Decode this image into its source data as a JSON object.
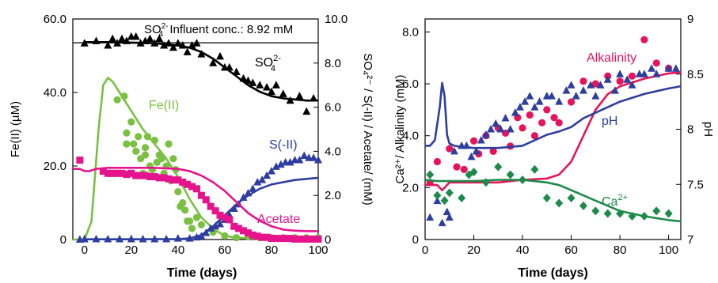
{
  "chart_data": [
    {
      "type": "scatter",
      "panel": "left",
      "xlabel": "Time (days)",
      "ylabel_left": "Fe(II) (µM)",
      "ylabel_right": "SO₄²⁻ / S(-II) / Acetate/ (mM)",
      "xlim": [
        -5,
        100
      ],
      "ylim_left": [
        0,
        60
      ],
      "ylim_right": [
        0,
        10
      ],
      "xticks": [
        "0",
        "20",
        "40",
        "60",
        "80",
        "100"
      ],
      "yticks_left": [
        "0",
        "20.0",
        "40.0",
        "60.0"
      ],
      "yticks_right": [
        "0",
        "2.0",
        "4.0",
        "6.0",
        "8.0",
        "10.0"
      ],
      "influent": {
        "value": 8.92,
        "label_prefix": "SO",
        "label_sub": "4",
        "label_sup": "2-",
        "label_text": " Influent conc.: 8.92 mM",
        "color": "#000000"
      },
      "series": [
        {
          "name": "SO₄²⁻",
          "label_main": "SO",
          "label_sub": "4",
          "label_sup": "2-",
          "axis": "right",
          "color": "#000000",
          "marker": "triangle",
          "x": [
            0,
            5,
            10,
            12,
            14,
            16,
            18,
            20,
            22,
            24,
            26,
            28,
            30,
            32,
            34,
            36,
            38,
            40,
            42,
            44,
            46,
            48,
            50,
            55,
            58,
            60,
            62,
            65,
            68,
            70,
            72,
            75,
            78,
            80,
            82,
            85,
            88,
            92,
            95,
            98
          ],
          "y": [
            8.9,
            9.0,
            8.8,
            9.1,
            8.9,
            9.1,
            9.0,
            9.2,
            9.2,
            8.9,
            9.0,
            9.1,
            8.9,
            9.1,
            8.8,
            8.9,
            8.7,
            8.9,
            8.8,
            8.5,
            8.8,
            8.9,
            8.4,
            8.0,
            8.3,
            7.8,
            7.8,
            7.6,
            7.3,
            7.2,
            7.1,
            7.0,
            6.9,
            6.7,
            7.0,
            6.6,
            6.3,
            6.5,
            5.8,
            6.4
          ],
          "fit_x": [
            0,
            10,
            20,
            30,
            40,
            45,
            50,
            55,
            60,
            65,
            70,
            75,
            80,
            85,
            90,
            95,
            100
          ],
          "fit_y": [
            8.95,
            8.95,
            8.93,
            8.9,
            8.8,
            8.7,
            8.5,
            8.2,
            7.8,
            7.4,
            7.0,
            6.7,
            6.5,
            6.4,
            6.35,
            6.3,
            6.3
          ]
        },
        {
          "name": "Fe(II)",
          "axis": "left",
          "color": "#7ac043",
          "marker": "circle",
          "x": [
            14,
            17,
            18,
            18,
            20,
            21,
            22,
            23,
            24,
            25,
            26,
            26,
            27,
            28,
            29,
            30,
            31,
            32,
            33,
            34,
            35,
            36,
            37,
            38,
            39,
            40,
            41,
            42,
            43,
            44,
            45,
            46,
            48,
            50,
            55,
            60,
            65,
            70,
            75,
            80,
            85,
            90,
            95,
            100
          ],
          "y": [
            38,
            39,
            26,
            29,
            32,
            26,
            24,
            28,
            22,
            18,
            25,
            23,
            28,
            20,
            19,
            27,
            21,
            23,
            22,
            18,
            20,
            26,
            16,
            22,
            19,
            13,
            9,
            10,
            8,
            5,
            5,
            3,
            6,
            4,
            2,
            1,
            0.5,
            0.8,
            0.5,
            0.5,
            0.5,
            0.5,
            0.5,
            0.5
          ],
          "fit_x": [
            -5,
            0,
            3,
            6,
            8,
            10,
            12,
            15,
            20,
            25,
            30,
            35,
            40,
            45,
            50,
            55,
            60,
            65,
            70,
            80,
            90,
            100
          ],
          "fit_y": [
            0,
            0,
            5,
            30,
            42,
            44,
            43,
            40,
            35,
            30,
            26,
            22,
            17,
            11,
            6,
            3,
            1,
            0.5,
            0.3,
            0.2,
            0.2,
            0.2
          ]
        },
        {
          "name": "S(-II)",
          "axis": "right",
          "color": "#2e3e9e",
          "marker": "triangle",
          "x": [
            -2,
            0,
            5,
            10,
            15,
            20,
            25,
            30,
            35,
            40,
            45,
            48,
            50,
            52,
            54,
            56,
            58,
            60,
            62,
            64,
            66,
            68,
            70,
            72,
            74,
            76,
            78,
            80,
            82,
            84,
            86,
            88,
            90,
            92,
            94,
            96,
            98,
            100
          ],
          "y": [
            0,
            0.02,
            0.02,
            0.02,
            0.02,
            0.02,
            0.02,
            0.02,
            0.02,
            0.05,
            0.05,
            0.1,
            0.15,
            0.3,
            0.5,
            0.6,
            0.7,
            0.9,
            1.1,
            1.4,
            1.6,
            1.9,
            2.1,
            2.3,
            2.6,
            2.7,
            2.9,
            3.1,
            3.3,
            3.4,
            3.5,
            3.5,
            3.6,
            3.6,
            3.8,
            3.7,
            3.7,
            3.6
          ],
          "fit_x": [
            0,
            20,
            40,
            45,
            50,
            55,
            60,
            65,
            70,
            75,
            80,
            85,
            90,
            95,
            100
          ],
          "fit_y": [
            0.01,
            0.01,
            0.02,
            0.05,
            0.2,
            0.6,
            1.1,
            1.6,
            2.0,
            2.3,
            2.5,
            2.6,
            2.7,
            2.75,
            2.8
          ]
        },
        {
          "name": "Acetate",
          "axis": "right",
          "color": "#e6148c",
          "marker": "square",
          "x": [
            -2,
            8,
            10,
            12,
            14,
            16,
            18,
            20,
            22,
            24,
            26,
            28,
            30,
            32,
            34,
            36,
            38,
            40,
            42,
            44,
            46,
            48,
            50,
            52,
            54,
            56,
            58,
            60,
            62,
            64,
            66,
            68,
            70,
            72,
            74,
            76,
            78,
            80,
            82,
            84,
            86,
            88,
            90,
            92,
            94,
            96,
            98,
            100
          ],
          "y": [
            3.6,
            3.1,
            3.0,
            3.0,
            3.0,
            3.0,
            2.95,
            3.0,
            2.9,
            2.9,
            2.9,
            2.85,
            2.85,
            2.8,
            2.8,
            2.75,
            2.7,
            2.7,
            2.6,
            2.5,
            2.4,
            2.3,
            2.0,
            1.8,
            1.5,
            1.3,
            1.1,
            1.0,
            0.9,
            0.6,
            0.5,
            0.4,
            0.3,
            0.2,
            0.15,
            0.1,
            0.1,
            0.05,
            0.05,
            0.05,
            0.05,
            0.05,
            0.02,
            0.02,
            0.02,
            0.02,
            0.02,
            0.02
          ],
          "fit_x": [
            -5,
            -2,
            0,
            2,
            5,
            10,
            20,
            30,
            40,
            45,
            50,
            55,
            60,
            65,
            70,
            75,
            80,
            85,
            90,
            95,
            100
          ],
          "fit_y": [
            3.2,
            3.2,
            3.1,
            3.1,
            3.2,
            3.25,
            3.25,
            3.25,
            3.2,
            3.1,
            2.9,
            2.6,
            2.2,
            1.7,
            1.2,
            0.85,
            0.6,
            0.45,
            0.4,
            0.38,
            0.38
          ]
        }
      ]
    },
    {
      "type": "scatter",
      "panel": "right",
      "xlabel": "Time (days)",
      "ylabel_left": "Ca²⁺/ Alkalinity (mM)",
      "ylabel_right": "pH",
      "xlim": [
        0,
        105
      ],
      "ylim_left": [
        0,
        8.5
      ],
      "ylim_right": [
        7,
        9
      ],
      "xticks": [
        "0",
        "20",
        "40",
        "60",
        "80",
        "100"
      ],
      "yticks_left": [
        "0",
        "2.0",
        "4.0",
        "6.0",
        "8.0"
      ],
      "yticks_right": [
        "7",
        "7.5",
        "8",
        "8.5",
        "9"
      ],
      "series": [
        {
          "name": "Alkalinity",
          "axis": "left",
          "color": "#e6145a",
          "marker": "circle",
          "x": [
            2,
            5,
            10,
            13,
            16,
            20,
            22,
            25,
            28,
            30,
            33,
            35,
            38,
            40,
            43,
            45,
            48,
            50,
            53,
            55,
            60,
            65,
            70,
            75,
            80,
            85,
            90,
            95,
            100
          ],
          "y": [
            2.2,
            3.0,
            3.5,
            2.8,
            2.7,
            3.8,
            3.3,
            4.0,
            3.4,
            4.3,
            4.1,
            3.6,
            4.7,
            4.3,
            4.8,
            4.0,
            4.5,
            5.0,
            4.7,
            4.5,
            5.3,
            6.1,
            6.0,
            6.3,
            6.1,
            6.3,
            7.7,
            6.8,
            6.6
          ],
          "fit_x": [
            0,
            5,
            7,
            10,
            20,
            30,
            40,
            50,
            55,
            60,
            65,
            70,
            75,
            80,
            90,
            100,
            105
          ],
          "fit_y": [
            2.1,
            2.1,
            1.9,
            2.2,
            2.2,
            2.2,
            2.3,
            2.35,
            2.5,
            3.0,
            4.0,
            5.0,
            5.6,
            5.9,
            6.2,
            6.4,
            6.45
          ]
        },
        {
          "name": "pH",
          "axis": "right",
          "color": "#2e3e9e",
          "marker": "triangle",
          "x": [
            2,
            5,
            7,
            9,
            10,
            12,
            15,
            17,
            19,
            21,
            23,
            25,
            27,
            29,
            31,
            33,
            35,
            37,
            39,
            41,
            43,
            45,
            47,
            50,
            52,
            55,
            58,
            60,
            62,
            65,
            68,
            70,
            72,
            75,
            78,
            80,
            83,
            85,
            88,
            90,
            93,
            95,
            100,
            103
          ],
          "y": [
            7.2,
            7.35,
            7.15,
            7.25,
            7.2,
            7.8,
            7.85,
            7.85,
            7.75,
            7.8,
            7.9,
            7.95,
            8.0,
            8.05,
            8.0,
            8.1,
            8.0,
            8.15,
            8.2,
            8.25,
            8.3,
            8.2,
            8.25,
            8.3,
            8.3,
            8.25,
            8.35,
            8.4,
            8.3,
            8.35,
            8.4,
            8.3,
            8.4,
            8.45,
            8.35,
            8.5,
            8.45,
            8.4,
            8.5,
            8.5,
            8.55,
            8.5,
            8.55,
            8.55
          ],
          "fit_x": [
            0,
            2,
            4,
            6,
            7,
            8,
            9,
            10,
            12,
            15,
            20,
            30,
            40,
            45,
            50,
            55,
            60,
            65,
            70,
            80,
            90,
            100,
            105
          ],
          "fit_y": [
            7.85,
            7.85,
            7.9,
            8.2,
            8.42,
            8.3,
            7.95,
            7.87,
            7.85,
            7.84,
            7.83,
            7.83,
            7.85,
            7.9,
            7.95,
            7.98,
            8.02,
            8.1,
            8.15,
            8.25,
            8.32,
            8.37,
            8.39
          ]
        },
        {
          "name": "Ca²⁺",
          "label_main": "Ca",
          "label_sup": "2+",
          "axis": "left",
          "color": "#1e8a4a",
          "marker": "diamond",
          "x": [
            2,
            5,
            8,
            10,
            15,
            18,
            20,
            25,
            30,
            35,
            40,
            45,
            50,
            55,
            60,
            65,
            70,
            75,
            80,
            85,
            90,
            95,
            100
          ],
          "y": [
            2.5,
            1.7,
            1.5,
            1.8,
            1.6,
            2.5,
            2.6,
            2.2,
            2.8,
            2.5,
            2.3,
            2.7,
            1.6,
            1.4,
            1.6,
            1.3,
            1.1,
            1.0,
            1.0,
            0.9,
            0.9,
            1.1,
            1.0
          ],
          "fit_x": [
            0,
            5,
            10,
            20,
            30,
            40,
            50,
            55,
            60,
            65,
            70,
            75,
            80,
            90,
            100,
            105
          ],
          "fit_y": [
            2.3,
            2.25,
            2.25,
            2.25,
            2.3,
            2.3,
            2.2,
            2.1,
            1.9,
            1.7,
            1.5,
            1.3,
            1.1,
            0.9,
            0.75,
            0.7
          ]
        }
      ]
    }
  ]
}
